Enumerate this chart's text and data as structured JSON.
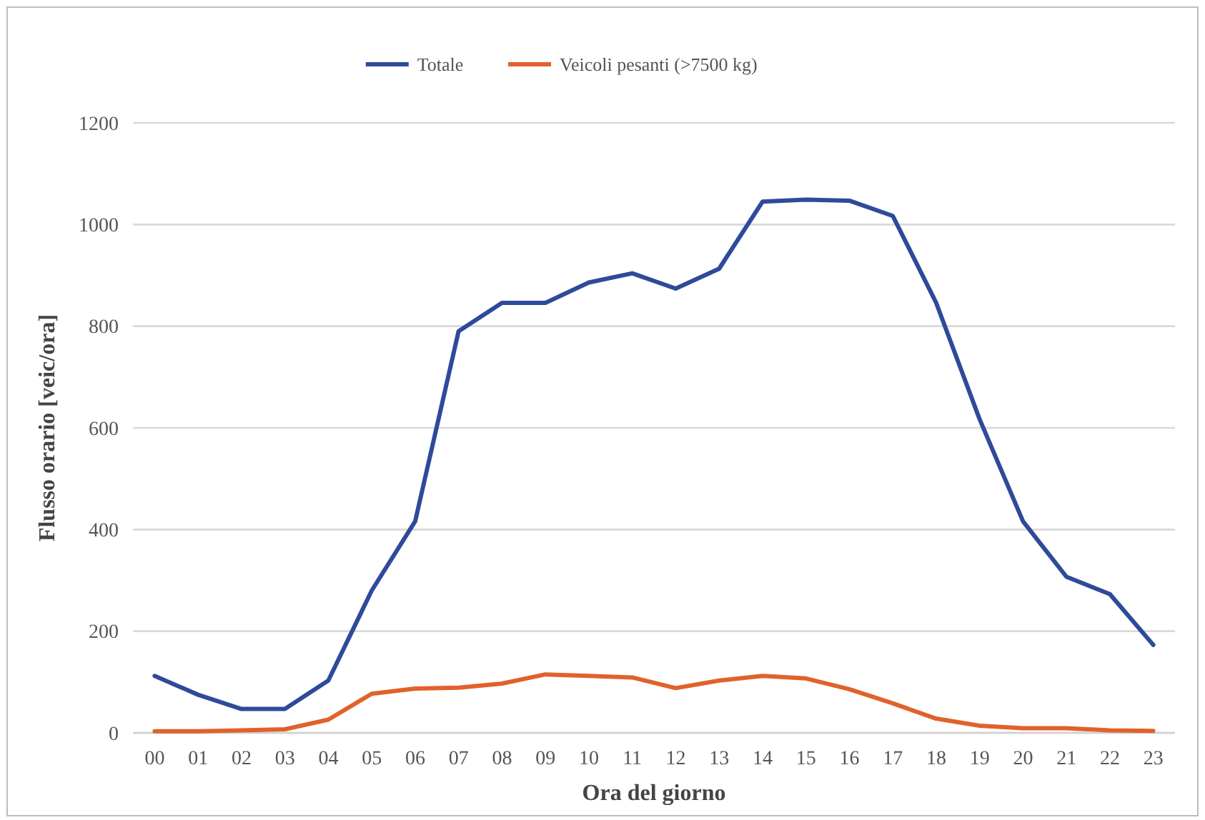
{
  "chart_data": {
    "type": "line",
    "xlabel": "Ora del giorno",
    "ylabel": "Flusso orario [veic/ora]",
    "categories": [
      "00",
      "01",
      "02",
      "03",
      "04",
      "05",
      "06",
      "07",
      "08",
      "09",
      "10",
      "11",
      "12",
      "13",
      "14",
      "15",
      "16",
      "17",
      "18",
      "19",
      "20",
      "21",
      "22",
      "23"
    ],
    "series": [
      {
        "name": "Totale",
        "color": "#2e4a9a",
        "values": [
          112,
          75,
          47,
          47,
          103,
          280,
          416,
          790,
          846,
          846,
          886,
          904,
          874,
          913,
          1045,
          1049,
          1047,
          1017,
          846,
          617,
          416,
          307,
          273,
          173
        ]
      },
      {
        "name": "Veicoli pesanti (>7500 kg)",
        "color": "#e0622a",
        "values": [
          3,
          3,
          5,
          7,
          26,
          77,
          87,
          89,
          97,
          115,
          112,
          109,
          88,
          103,
          112,
          107,
          86,
          58,
          28,
          14,
          9,
          9,
          5,
          4
        ]
      }
    ],
    "ylim": [
      0,
      1200
    ],
    "yticks": [
      0,
      200,
      400,
      600,
      800,
      1000,
      1200
    ],
    "grid": "y",
    "legend": "top",
    "marker": "none",
    "line_style": "solid"
  }
}
